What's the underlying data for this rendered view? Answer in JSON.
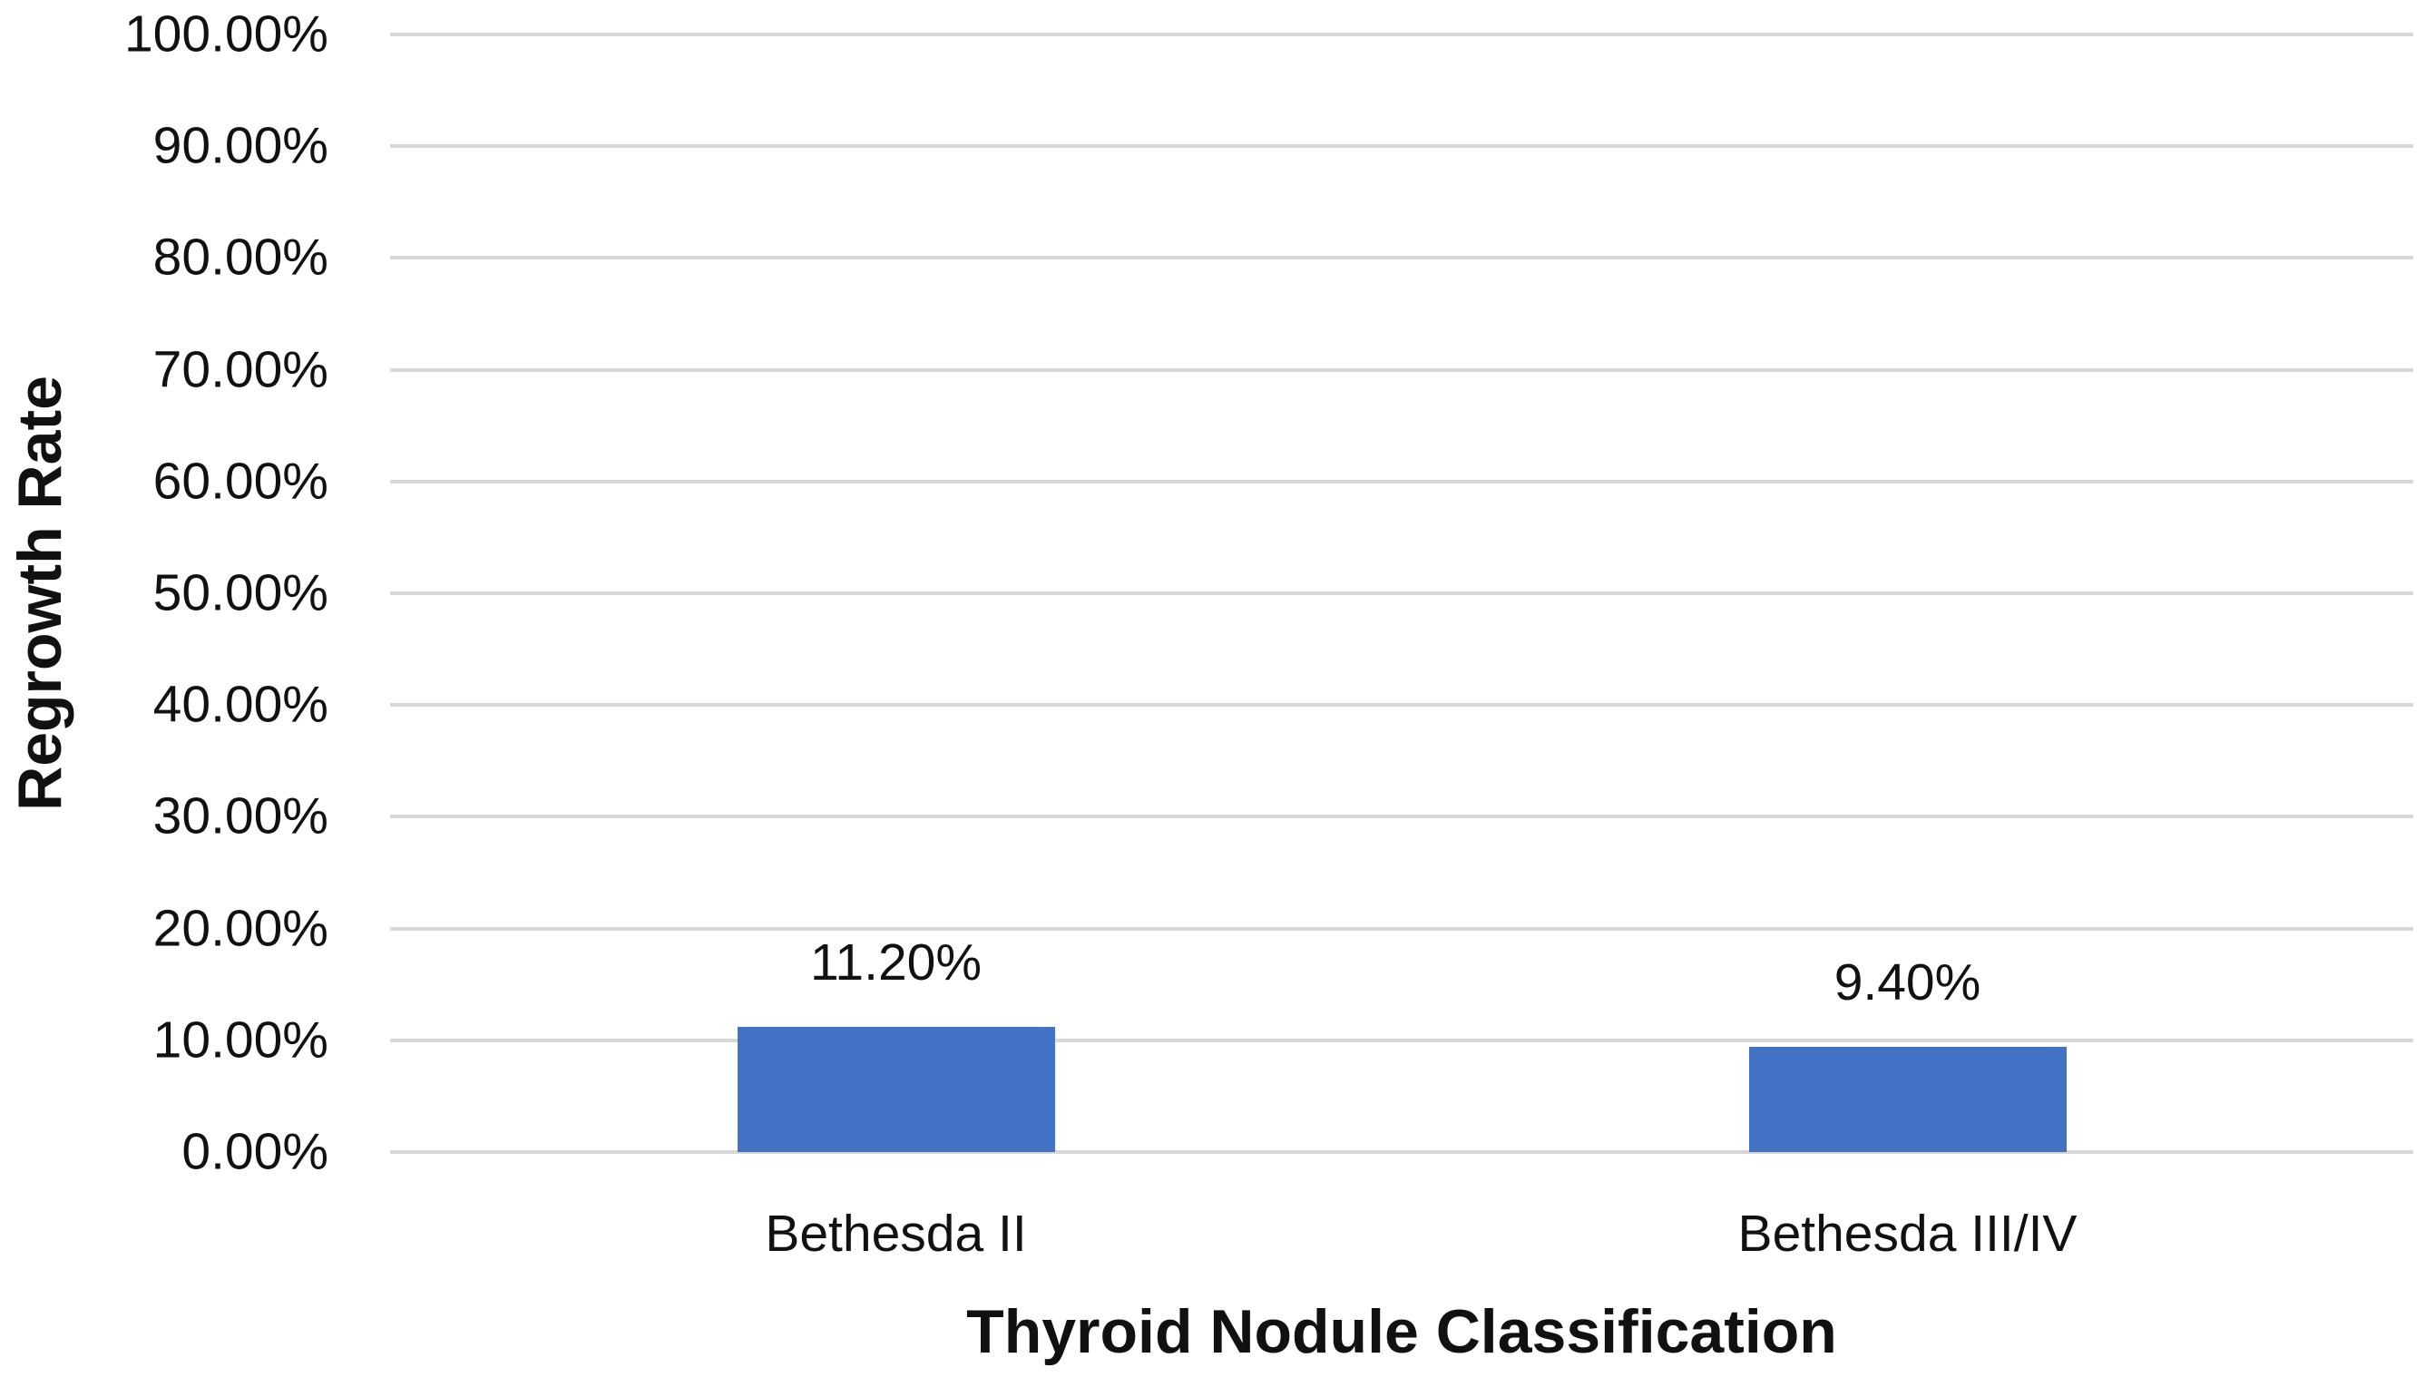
{
  "chart_data": {
    "type": "bar",
    "title": "",
    "categories": [
      "Bethesda II",
      "Bethesda III/IV"
    ],
    "values": [
      11.2,
      9.4
    ],
    "value_labels": [
      "11.20%",
      "9.40%"
    ],
    "xlabel": "Thyroid Nodule Classification",
    "ylabel": "Regrowth Rate",
    "ylim": [
      0,
      100
    ],
    "ytick_step": 10,
    "ytick_labels": [
      "0.00%",
      "10.00%",
      "20.00%",
      "30.00%",
      "40.00%",
      "50.00%",
      "60.00%",
      "70.00%",
      "80.00%",
      "90.00%",
      "100.00%"
    ],
    "grid": true,
    "legend": false,
    "bar_color": "#4472C4",
    "gridline_color": "#D7D7D7",
    "text_color": "#111111",
    "background": "#FFFFFF"
  }
}
